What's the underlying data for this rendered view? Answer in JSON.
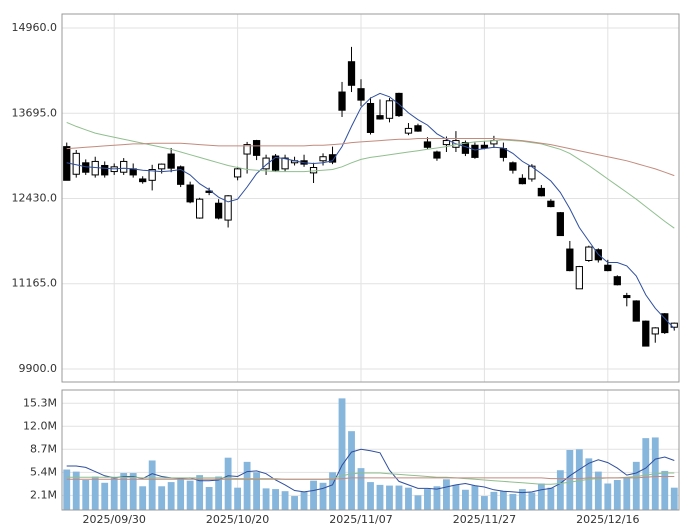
{
  "chart_data": [
    {
      "type": "candlestick",
      "open": [
        13200,
        12790,
        12960,
        12780,
        12920,
        12830,
        12820,
        12870,
        12720,
        12700,
        12870,
        13090,
        12900,
        12630,
        12140,
        12540,
        12360,
        12110,
        12750,
        13090,
        13290,
        12870,
        13060,
        12870,
        12960,
        12990,
        12810,
        12990,
        13080,
        14010,
        14460,
        14060,
        13840,
        13660,
        13620,
        13990,
        13400,
        13510,
        13270,
        13120,
        13230,
        13190,
        13260,
        13220,
        13220,
        13240,
        13170,
        12960,
        12730,
        12720,
        12580,
        12390,
        12220,
        11680,
        11090,
        11510,
        11670,
        11440,
        11270,
        10990,
        10910,
        10610,
        10420,
        10720,
        10520
      ],
      "high": [
        13260,
        13150,
        13010,
        13050,
        12980,
        12950,
        13030,
        12950,
        12760,
        12930,
        12950,
        13180,
        12920,
        12680,
        12440,
        12590,
        12420,
        12480,
        12900,
        13270,
        13300,
        13080,
        13090,
        13080,
        13050,
        13080,
        12960,
        13100,
        13200,
        14160,
        14680,
        14200,
        13930,
        13900,
        13920,
        14000,
        13550,
        13540,
        13340,
        13140,
        13350,
        13430,
        13290,
        13260,
        13280,
        13360,
        13260,
        12980,
        12790,
        12940,
        12630,
        12420,
        12230,
        11800,
        11430,
        11730,
        11690,
        11520,
        11290,
        11030,
        10920,
        10620,
        10520,
        10730,
        10590
      ],
      "low": [
        12700,
        12740,
        12780,
        12740,
        12740,
        12780,
        12780,
        12740,
        12650,
        12550,
        12800,
        12820,
        12600,
        12360,
        12130,
        12480,
        12120,
        12000,
        12700,
        12800,
        13000,
        12780,
        12830,
        12830,
        12920,
        12900,
        12660,
        12920,
        12940,
        13640,
        14010,
        13800,
        13380,
        13600,
        13560,
        13640,
        13370,
        13420,
        13160,
        12990,
        13120,
        13120,
        13060,
        13020,
        13160,
        13180,
        12980,
        12800,
        12640,
        12680,
        12460,
        12300,
        11880,
        11350,
        11090,
        11490,
        11480,
        11350,
        11140,
        10830,
        10610,
        10240,
        10290,
        10420,
        10470
      ],
      "close": [
        12700,
        13100,
        12820,
        12980,
        12780,
        12900,
        12980,
        12780,
        12680,
        12860,
        12940,
        12880,
        12640,
        12380,
        12420,
        12520,
        12140,
        12470,
        12870,
        13230,
        13070,
        13030,
        12850,
        13030,
        12990,
        12940,
        12890,
        13050,
        12970,
        13740,
        14110,
        13890,
        13410,
        13610,
        13880,
        13660,
        13470,
        13430,
        13190,
        13030,
        13290,
        13290,
        13100,
        13040,
        13180,
        13290,
        13040,
        12850,
        12650,
        12910,
        12470,
        12310,
        11880,
        11360,
        11420,
        11710,
        11520,
        11360,
        11150,
        10960,
        10610,
        10240,
        10510,
        10440,
        10580
      ],
      "up_color": "#ffffff",
      "down_color": "#000000",
      "ylim": [
        9707,
        15168
      ],
      "yticks": [
        {
          "value": 9900,
          "label": "9900.0"
        },
        {
          "value": 11165,
          "label": "11165.0"
        },
        {
          "value": 12430,
          "label": "12430.0"
        },
        {
          "value": 13695,
          "label": "13695.0"
        },
        {
          "value": 14960,
          "label": "14960.0"
        }
      ],
      "grid": true,
      "series": [
        {
          "color": "#2f4f9f",
          "values": [
            12960,
            12930,
            12900,
            12890,
            12880,
            12870,
            12880,
            12870,
            12850,
            12840,
            12830,
            12840,
            12860,
            12780,
            12650,
            12560,
            12450,
            12380,
            12420,
            12600,
            12800,
            12930,
            13040,
            13020,
            12990,
            12960,
            12950,
            12960,
            12990,
            13200,
            13500,
            13780,
            13920,
            13990,
            13940,
            13830,
            13700,
            13600,
            13520,
            13390,
            13310,
            13240,
            13200,
            13150,
            13170,
            13190,
            13180,
            13100,
            12980,
            12900,
            12800,
            12690,
            12520,
            12280,
            12000,
            11800,
            11600,
            11480,
            11480,
            11430,
            11280,
            11000,
            10800,
            10650,
            10500
          ]
        },
        {
          "color": "#8fbf8f",
          "values": [
            13560,
            13500,
            13450,
            13400,
            13370,
            13340,
            13310,
            13280,
            13250,
            13220,
            13190,
            13160,
            13120,
            13080,
            13040,
            13000,
            12960,
            12920,
            12890,
            12860,
            12850,
            12840,
            12830,
            12830,
            12830,
            12830,
            12840,
            12850,
            12860,
            12900,
            12960,
            13010,
            13040,
            13060,
            13080,
            13100,
            13120,
            13140,
            13160,
            13180,
            13200,
            13230,
            13250,
            13270,
            13280,
            13290,
            13300,
            13290,
            13280,
            13260,
            13240,
            13200,
            13160,
            13100,
            13010,
            12920,
            12820,
            12720,
            12620,
            12520,
            12420,
            12310,
            12200,
            12090,
            11990
          ]
        },
        {
          "color": "#c48a7e",
          "values": [
            13170,
            13180,
            13190,
            13200,
            13210,
            13220,
            13230,
            13240,
            13240,
            13250,
            13250,
            13250,
            13250,
            13240,
            13230,
            13220,
            13210,
            13210,
            13210,
            13210,
            13210,
            13210,
            13210,
            13210,
            13210,
            13210,
            13220,
            13220,
            13230,
            13240,
            13260,
            13270,
            13280,
            13290,
            13300,
            13310,
            13310,
            13320,
            13320,
            13320,
            13320,
            13320,
            13320,
            13320,
            13320,
            13320,
            13310,
            13300,
            13290,
            13270,
            13250,
            13230,
            13200,
            13170,
            13140,
            13110,
            13080,
            13050,
            13020,
            12990,
            12950,
            12910,
            12870,
            12820,
            12770
          ]
        }
      ]
    },
    {
      "type": "bar",
      "categories": [
        null,
        null,
        null,
        null,
        null,
        "2025/09/30",
        null,
        null,
        null,
        null,
        null,
        null,
        null,
        null,
        null,
        null,
        null,
        null,
        "2025/10/20",
        null,
        null,
        null,
        null,
        null,
        null,
        null,
        null,
        null,
        null,
        null,
        null,
        "2025/11/07",
        null,
        null,
        null,
        null,
        null,
        null,
        null,
        null,
        null,
        null,
        null,
        null,
        "2025/11/27",
        null,
        null,
        null,
        null,
        null,
        null,
        null,
        null,
        null,
        null,
        null,
        null,
        "2025/12/16",
        null,
        null,
        null,
        null,
        null,
        null,
        null
      ],
      "values": [
        5.8,
        5.5,
        4.3,
        4.8,
        3.9,
        4.7,
        5.3,
        5.3,
        3.4,
        7.1,
        3.4,
        4.0,
        4.4,
        4.2,
        5.0,
        3.3,
        4.8,
        7.5,
        3.2,
        6.9,
        5.4,
        3.1,
        3.0,
        2.7,
        2.0,
        2.6,
        4.2,
        3.9,
        5.4,
        16.0,
        11.3,
        6.0,
        4.0,
        3.6,
        3.5,
        3.5,
        3.2,
        2.1,
        3.0,
        3.4,
        4.4,
        3.6,
        2.9,
        3.5,
        2.0,
        2.6,
        2.7,
        2.3,
        3.0,
        2.5,
        3.8,
        3.2,
        5.7,
        8.6,
        8.7,
        7.4,
        5.5,
        3.8,
        4.3,
        4.7,
        6.9,
        10.3,
        10.4,
        5.6,
        3.2
      ],
      "color": "#86b6dc",
      "ylim": [
        0,
        17.2
      ],
      "yticks": [
        {
          "value": 2.1,
          "label": "2.1M"
        },
        {
          "value": 5.4,
          "label": "5.4M"
        },
        {
          "value": 8.7,
          "label": "8.7M"
        },
        {
          "value": 12.0,
          "label": "12.0M"
        },
        {
          "value": 15.3,
          "label": "15.3M"
        }
      ],
      "grid": true,
      "series": [
        {
          "color": "#2f4f9f",
          "values": [
            6.3,
            6.3,
            6.1,
            5.5,
            4.9,
            4.6,
            4.8,
            4.8,
            4.5,
            5.2,
            4.8,
            4.6,
            4.5,
            4.6,
            4.2,
            4.2,
            4.3,
            4.9,
            4.8,
            5.5,
            5.6,
            5.2,
            4.3,
            3.6,
            2.8,
            2.6,
            2.8,
            3.1,
            3.6,
            6.4,
            8.3,
            8.7,
            8.5,
            8.2,
            5.7,
            4.1,
            3.6,
            3.1,
            3.1,
            3.0,
            3.3,
            3.6,
            3.8,
            3.5,
            3.3,
            2.9,
            2.7,
            2.6,
            2.5,
            2.6,
            2.9,
            3.1,
            3.8,
            4.9,
            5.8,
            6.7,
            7.2,
            6.8,
            6.0,
            5.0,
            5.3,
            6.0,
            7.3,
            7.6,
            7.1
          ]
        },
        {
          "color": "#8fbf8f",
          "values": [
            4.7,
            4.7,
            4.7,
            4.7,
            4.7,
            4.7,
            4.7,
            4.7,
            4.6,
            4.6,
            4.6,
            4.6,
            4.6,
            4.6,
            4.6,
            4.6,
            4.6,
            4.6,
            4.5,
            4.5,
            4.5,
            4.5,
            4.5,
            4.4,
            4.4,
            4.4,
            4.4,
            4.4,
            4.5,
            4.9,
            5.2,
            5.3,
            5.3,
            5.3,
            5.2,
            5.1,
            5.0,
            4.9,
            4.8,
            4.7,
            4.7,
            4.6,
            4.5,
            4.4,
            4.3,
            4.2,
            4.1,
            4.0,
            3.9,
            3.8,
            3.7,
            3.7,
            3.8,
            4.0,
            4.2,
            4.4,
            4.5,
            4.6,
            4.6,
            4.7,
            4.8,
            5.0,
            5.2,
            5.3,
            5.3
          ]
        },
        {
          "color": "#c48a7e",
          "values": [
            4.4,
            4.4,
            4.4,
            4.4,
            4.4,
            4.4,
            4.4,
            4.4,
            4.4,
            4.4,
            4.4,
            4.4,
            4.4,
            4.4,
            4.4,
            4.4,
            4.4,
            4.4,
            4.4,
            4.4,
            4.4,
            4.4,
            4.4,
            4.4,
            4.4,
            4.4,
            4.4,
            4.4,
            4.4,
            4.5,
            4.6,
            4.6,
            4.6,
            4.6,
            4.6,
            4.6,
            4.6,
            4.6,
            4.6,
            4.6,
            4.6,
            4.6,
            4.6,
            4.6,
            4.6,
            4.6,
            4.6,
            4.6,
            4.6,
            4.6,
            4.6,
            4.5,
            4.5,
            4.5,
            4.5,
            4.6,
            4.6,
            4.6,
            4.6,
            4.6,
            4.6,
            4.7,
            4.8,
            4.8,
            4.8
          ]
        }
      ]
    }
  ]
}
